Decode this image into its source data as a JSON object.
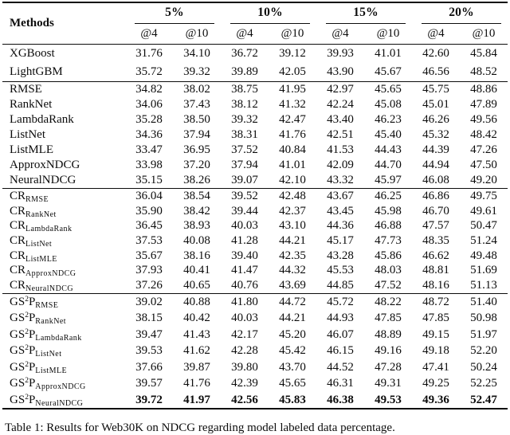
{
  "colors": {
    "background": "#ffffff",
    "text": "#0c0c0c",
    "rule": "#0c0c0c"
  },
  "table": {
    "methods_header": "Methods",
    "groups": [
      {
        "label": "5%"
      },
      {
        "label": "10%"
      },
      {
        "label": "15%"
      },
      {
        "label": "20%"
      }
    ],
    "sub_headers": [
      "@4",
      "@10",
      "@4",
      "@10",
      "@4",
      "@10",
      "@4",
      "@10"
    ],
    "sections": [
      {
        "rows": [
          {
            "base": "XGBoost",
            "sup": "",
            "base2": "",
            "sub": "",
            "bold": false,
            "values": [
              "31.76",
              "34.10",
              "36.72",
              "39.12",
              "39.93",
              "41.01",
              "42.60",
              "45.84"
            ]
          },
          {
            "base": "LightGBM",
            "sup": "",
            "base2": "",
            "sub": "",
            "bold": false,
            "values": [
              "35.72",
              "39.32",
              "39.89",
              "42.05",
              "43.90",
              "45.67",
              "46.56",
              "48.52"
            ]
          }
        ]
      },
      {
        "rows": [
          {
            "base": "RMSE",
            "sup": "",
            "base2": "",
            "sub": "",
            "bold": false,
            "values": [
              "34.82",
              "38.02",
              "38.75",
              "41.95",
              "42.97",
              "45.65",
              "45.75",
              "48.86"
            ]
          },
          {
            "base": "RankNet",
            "sup": "",
            "base2": "",
            "sub": "",
            "bold": false,
            "values": [
              "34.06",
              "37.43",
              "38.12",
              "41.32",
              "42.24",
              "45.08",
              "45.01",
              "47.89"
            ]
          },
          {
            "base": "LambdaRank",
            "sup": "",
            "base2": "",
            "sub": "",
            "bold": false,
            "values": [
              "35.28",
              "38.50",
              "39.32",
              "42.47",
              "43.40",
              "46.23",
              "46.26",
              "49.56"
            ]
          },
          {
            "base": "ListNet",
            "sup": "",
            "base2": "",
            "sub": "",
            "bold": false,
            "values": [
              "34.36",
              "37.94",
              "38.31",
              "41.76",
              "42.51",
              "45.40",
              "45.32",
              "48.42"
            ]
          },
          {
            "base": "ListMLE",
            "sup": "",
            "base2": "",
            "sub": "",
            "bold": false,
            "values": [
              "33.47",
              "36.95",
              "37.52",
              "40.84",
              "41.53",
              "44.43",
              "44.39",
              "47.26"
            ]
          },
          {
            "base": "ApproxNDCG",
            "sup": "",
            "base2": "",
            "sub": "",
            "bold": false,
            "values": [
              "33.98",
              "37.20",
              "37.94",
              "41.01",
              "42.09",
              "44.70",
              "44.94",
              "47.50"
            ]
          },
          {
            "base": "NeuralNDCG",
            "sup": "",
            "base2": "",
            "sub": "",
            "bold": false,
            "values": [
              "35.15",
              "38.26",
              "39.07",
              "42.10",
              "43.32",
              "45.97",
              "46.08",
              "49.20"
            ]
          }
        ]
      },
      {
        "rows": [
          {
            "base": "CR",
            "sup": "",
            "base2": "",
            "sub": "RMSE",
            "bold": false,
            "values": [
              "36.04",
              "38.54",
              "39.52",
              "42.48",
              "43.67",
              "46.25",
              "46.86",
              "49.75"
            ]
          },
          {
            "base": "CR",
            "sup": "",
            "base2": "",
            "sub": "RankNet",
            "bold": false,
            "values": [
              "35.90",
              "38.42",
              "39.44",
              "42.37",
              "43.45",
              "45.98",
              "46.70",
              "49.61"
            ]
          },
          {
            "base": "CR",
            "sup": "",
            "base2": "",
            "sub": "LambdaRank",
            "bold": false,
            "values": [
              "36.45",
              "38.93",
              "40.03",
              "43.10",
              "44.36",
              "46.88",
              "47.57",
              "50.47"
            ]
          },
          {
            "base": "CR",
            "sup": "",
            "base2": "",
            "sub": "ListNet",
            "bold": false,
            "values": [
              "37.53",
              "40.08",
              "41.28",
              "44.21",
              "45.17",
              "47.73",
              "48.35",
              "51.24"
            ]
          },
          {
            "base": "CR",
            "sup": "",
            "base2": "",
            "sub": "ListMLE",
            "bold": false,
            "values": [
              "35.67",
              "38.16",
              "39.40",
              "42.35",
              "43.28",
              "45.86",
              "46.62",
              "49.48"
            ]
          },
          {
            "base": "CR",
            "sup": "",
            "base2": "",
            "sub": "ApproxNDCG",
            "bold": false,
            "values": [
              "37.93",
              "40.41",
              "41.47",
              "44.32",
              "45.53",
              "48.03",
              "48.81",
              "51.69"
            ]
          },
          {
            "base": "CR",
            "sup": "",
            "base2": "",
            "sub": "NeuralNDCG",
            "bold": false,
            "values": [
              "37.26",
              "40.65",
              "40.76",
              "43.69",
              "44.85",
              "47.52",
              "48.16",
              "51.13"
            ]
          }
        ]
      },
      {
        "rows": [
          {
            "base": "GS",
            "sup": "2",
            "base2": "P",
            "sub": "RMSE",
            "bold": false,
            "values": [
              "39.02",
              "40.88",
              "41.80",
              "44.72",
              "45.72",
              "48.22",
              "48.72",
              "51.40"
            ]
          },
          {
            "base": "GS",
            "sup": "2",
            "base2": "P",
            "sub": "RankNet",
            "bold": false,
            "values": [
              "38.15",
              "40.42",
              "40.03",
              "44.21",
              "44.93",
              "47.85",
              "47.85",
              "50.98"
            ]
          },
          {
            "base": "GS",
            "sup": "2",
            "base2": "P",
            "sub": "LambdaRank",
            "bold": false,
            "values": [
              "39.47",
              "41.43",
              "42.17",
              "45.20",
              "46.07",
              "48.89",
              "49.15",
              "51.97"
            ]
          },
          {
            "base": "GS",
            "sup": "2",
            "base2": "P",
            "sub": "ListNet",
            "bold": false,
            "values": [
              "39.53",
              "41.62",
              "42.28",
              "45.42",
              "46.15",
              "49.16",
              "49.18",
              "52.20"
            ]
          },
          {
            "base": "GS",
            "sup": "2",
            "base2": "P",
            "sub": "ListMLE",
            "bold": false,
            "values": [
              "37.66",
              "39.87",
              "39.80",
              "43.70",
              "44.52",
              "47.28",
              "47.41",
              "50.24"
            ]
          },
          {
            "base": "GS",
            "sup": "2",
            "base2": "P",
            "sub": "ApproxNDCG",
            "bold": false,
            "values": [
              "39.57",
              "41.76",
              "42.39",
              "45.65",
              "46.31",
              "49.31",
              "49.25",
              "52.25"
            ]
          },
          {
            "base": "GS",
            "sup": "2",
            "base2": "P",
            "sub": "NeuralNDCG",
            "bold": true,
            "values": [
              "39.72",
              "41.97",
              "42.56",
              "45.83",
              "46.38",
              "49.53",
              "49.36",
              "52.47"
            ]
          }
        ]
      }
    ],
    "caption": "Table 1: Results for Web30K on NDCG regarding model labeled data percentage."
  }
}
